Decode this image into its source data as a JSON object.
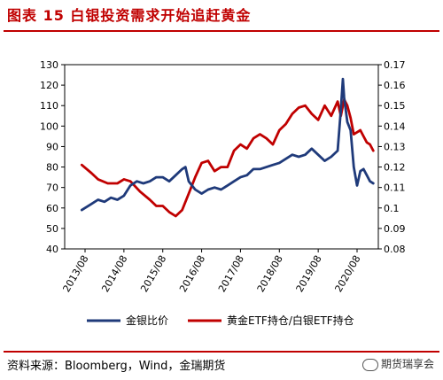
{
  "header": {
    "title": "图表 15 白银投资需求开始追赶黄金"
  },
  "footer": {
    "source": "资料来源：Bloomberg，Wind，金瑞期货",
    "watermark": "期货瑞享会"
  },
  "colors": {
    "accent": "#c00000",
    "series_blue": "#1f3a7a",
    "series_red": "#c00000"
  },
  "chart_data": {
    "type": "line",
    "x_tick_labels": [
      "2013/08",
      "2014/08",
      "2015/08",
      "2016/08",
      "2017/08",
      "2018/08",
      "2019/08",
      "2020/08"
    ],
    "y_left": {
      "ticks": [
        40,
        50,
        60,
        70,
        80,
        90,
        100,
        110,
        120,
        130
      ],
      "range": [
        40,
        130
      ]
    },
    "y_right": {
      "ticks": [
        "0.08",
        "0.09",
        "0.1",
        "0.11",
        "0.12",
        "0.13",
        "0.14",
        "0.15",
        "0.16",
        "0.17"
      ],
      "range": [
        0.08,
        0.17
      ]
    },
    "series": [
      {
        "name": "金银比价",
        "axis": "left",
        "color": "#1f3a7a",
        "points": [
          [
            "2013/07",
            59
          ],
          [
            "2013/10",
            62
          ],
          [
            "2013/12",
            64
          ],
          [
            "2014/02",
            63
          ],
          [
            "2014/04",
            65
          ],
          [
            "2014/06",
            64
          ],
          [
            "2014/08",
            66
          ],
          [
            "2014/10",
            71
          ],
          [
            "2014/12",
            73
          ],
          [
            "2015/02",
            72
          ],
          [
            "2015/04",
            73
          ],
          [
            "2015/06",
            75
          ],
          [
            "2015/08",
            75
          ],
          [
            "2015/10",
            73
          ],
          [
            "2015/12",
            76
          ],
          [
            "2016/02",
            79
          ],
          [
            "2016/03",
            80
          ],
          [
            "2016/04",
            73
          ],
          [
            "2016/06",
            69
          ],
          [
            "2016/08",
            67
          ],
          [
            "2016/10",
            69
          ],
          [
            "2016/12",
            70
          ],
          [
            "2017/02",
            69
          ],
          [
            "2017/04",
            71
          ],
          [
            "2017/06",
            73
          ],
          [
            "2017/08",
            75
          ],
          [
            "2017/10",
            76
          ],
          [
            "2017/12",
            79
          ],
          [
            "2018/02",
            79
          ],
          [
            "2018/04",
            80
          ],
          [
            "2018/06",
            81
          ],
          [
            "2018/08",
            82
          ],
          [
            "2018/10",
            84
          ],
          [
            "2018/12",
            86
          ],
          [
            "2019/02",
            85
          ],
          [
            "2019/04",
            86
          ],
          [
            "2019/06",
            89
          ],
          [
            "2019/08",
            86
          ],
          [
            "2019/10",
            83
          ],
          [
            "2019/12",
            85
          ],
          [
            "2020/02",
            88
          ],
          [
            "2020/03",
            108
          ],
          [
            "2020/03/20",
            123
          ],
          [
            "2020/04",
            114
          ],
          [
            "2020/05",
            102
          ],
          [
            "2020/06",
            98
          ],
          [
            "2020/07",
            80
          ],
          [
            "2020/08",
            71
          ],
          [
            "2020/09",
            78
          ],
          [
            "2020/10",
            79
          ],
          [
            "2020/11",
            76
          ],
          [
            "2020/12",
            73
          ],
          [
            "2021/01",
            72
          ]
        ]
      },
      {
        "name": "黄金ETF持仓/白银ETF持仓",
        "axis": "right",
        "color": "#c00000",
        "points": [
          [
            "2013/07",
            0.121
          ],
          [
            "2013/10",
            0.117
          ],
          [
            "2013/12",
            0.114
          ],
          [
            "2014/03",
            0.112
          ],
          [
            "2014/06",
            0.112
          ],
          [
            "2014/08",
            0.114
          ],
          [
            "2014/10",
            0.113
          ],
          [
            "2015/01",
            0.108
          ],
          [
            "2015/04",
            0.104
          ],
          [
            "2015/06",
            0.101
          ],
          [
            "2015/08",
            0.101
          ],
          [
            "2015/10",
            0.098
          ],
          [
            "2015/12",
            0.096
          ],
          [
            "2016/02",
            0.099
          ],
          [
            "2016/04",
            0.107
          ],
          [
            "2016/06",
            0.115
          ],
          [
            "2016/08",
            0.122
          ],
          [
            "2016/10",
            0.123
          ],
          [
            "2016/12",
            0.118
          ],
          [
            "2017/02",
            0.12
          ],
          [
            "2017/04",
            0.12
          ],
          [
            "2017/06",
            0.128
          ],
          [
            "2017/08",
            0.131
          ],
          [
            "2017/10",
            0.129
          ],
          [
            "2017/12",
            0.134
          ],
          [
            "2018/02",
            0.136
          ],
          [
            "2018/04",
            0.134
          ],
          [
            "2018/06",
            0.131
          ],
          [
            "2018/08",
            0.138
          ],
          [
            "2018/10",
            0.141
          ],
          [
            "2018/12",
            0.146
          ],
          [
            "2019/02",
            0.149
          ],
          [
            "2019/04",
            0.15
          ],
          [
            "2019/06",
            0.146
          ],
          [
            "2019/08",
            0.143
          ],
          [
            "2019/10",
            0.15
          ],
          [
            "2019/12",
            0.145
          ],
          [
            "2020/02",
            0.152
          ],
          [
            "2020/03",
            0.145
          ],
          [
            "2020/04",
            0.153
          ],
          [
            "2020/05",
            0.15
          ],
          [
            "2020/06",
            0.144
          ],
          [
            "2020/07",
            0.136
          ],
          [
            "2020/08",
            0.137
          ],
          [
            "2020/09",
            0.138
          ],
          [
            "2020/10",
            0.135
          ],
          [
            "2020/11",
            0.132
          ],
          [
            "2020/12",
            0.131
          ],
          [
            "2021/01",
            0.128
          ]
        ]
      }
    ],
    "legend_position": "bottom",
    "grid": false
  }
}
